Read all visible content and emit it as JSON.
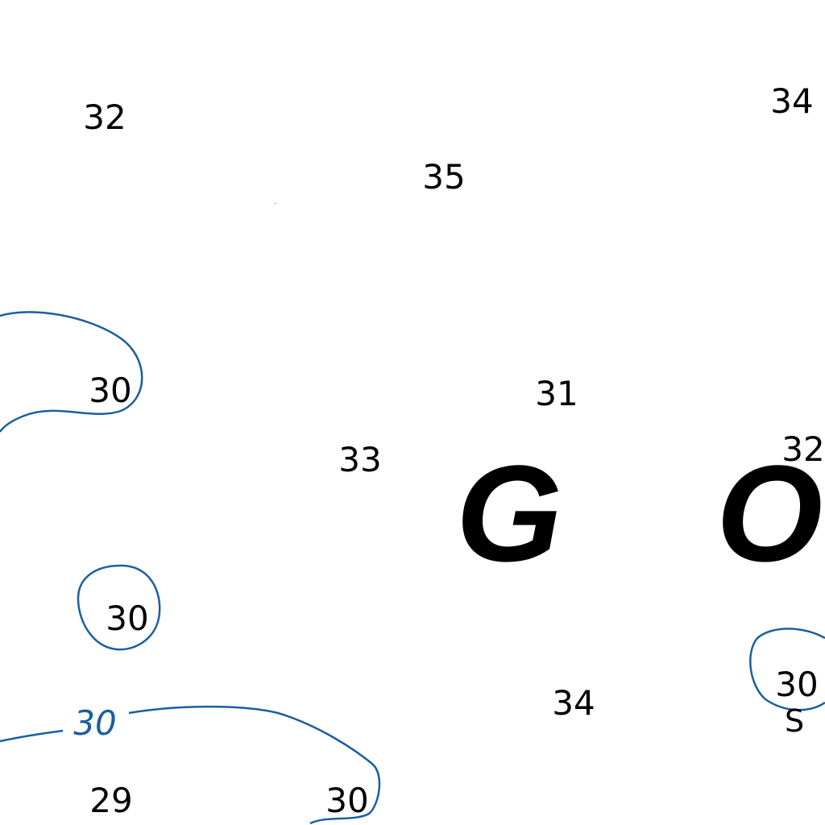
{
  "map": {
    "contour_color": "#1a5fa0",
    "soundings": [
      "32",
      "34",
      "35",
      "30",
      "31",
      "33",
      "32",
      "30",
      "34",
      "30",
      "29",
      "30"
    ],
    "contour_label": "30",
    "place_name_letters": [
      "G",
      "O"
    ],
    "seabed_code": "S"
  }
}
